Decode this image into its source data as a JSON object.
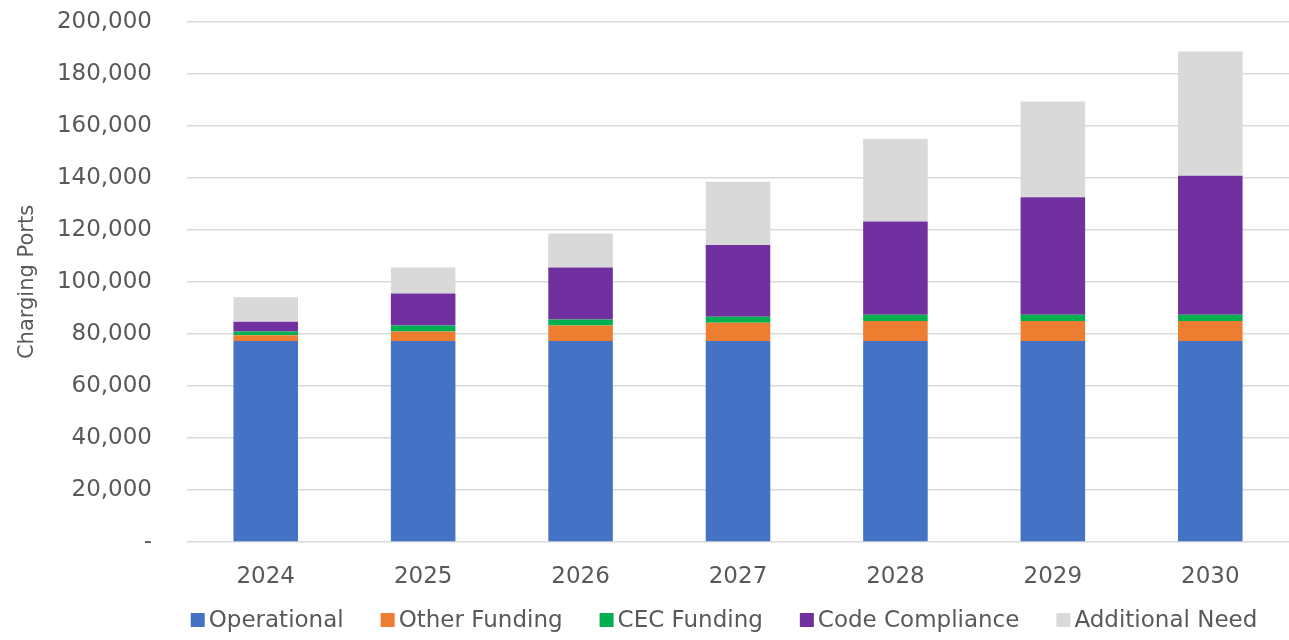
{
  "chart_data": {
    "type": "bar",
    "stacked": true,
    "ylabel": "Charging Ports",
    "categories": [
      "2024",
      "2025",
      "2026",
      "2027",
      "2028",
      "2029",
      "2030"
    ],
    "series": [
      {
        "name": "Operational",
        "color": "#4472c4",
        "values": [
          77300,
          77300,
          77300,
          77300,
          77300,
          77300,
          77300
        ]
      },
      {
        "name": "Other Funding",
        "color": "#ed7d31",
        "values": [
          2200,
          3700,
          6000,
          7000,
          7700,
          7700,
          7700
        ]
      },
      {
        "name": "CEC Funding",
        "color": "#00b050",
        "values": [
          1500,
          2300,
          2300,
          2300,
          2400,
          2400,
          2400
        ]
      },
      {
        "name": "Code Compliance",
        "color": "#7030a0",
        "values": [
          3700,
          12300,
          20000,
          27600,
          35900,
          45200,
          53500
        ]
      },
      {
        "name": "Additional Need",
        "color": "#d9d9d9",
        "values": [
          9400,
          10000,
          13100,
          24400,
          31700,
          36800,
          47800
        ]
      }
    ],
    "ylim": [
      0,
      200000
    ],
    "yticks": [
      {
        "value": 0,
        "label": "-"
      },
      {
        "value": 20000,
        "label": "20,000"
      },
      {
        "value": 40000,
        "label": "40,000"
      },
      {
        "value": 60000,
        "label": "60,000"
      },
      {
        "value": 80000,
        "label": "80,000"
      },
      {
        "value": 100000,
        "label": "100,000"
      },
      {
        "value": 120000,
        "label": "120,000"
      },
      {
        "value": 140000,
        "label": "140,000"
      },
      {
        "value": 160000,
        "label": "160,000"
      },
      {
        "value": 180000,
        "label": "180,000"
      },
      {
        "value": 200000,
        "label": "200,000"
      }
    ],
    "grid": "y",
    "legend": "bottom"
  }
}
